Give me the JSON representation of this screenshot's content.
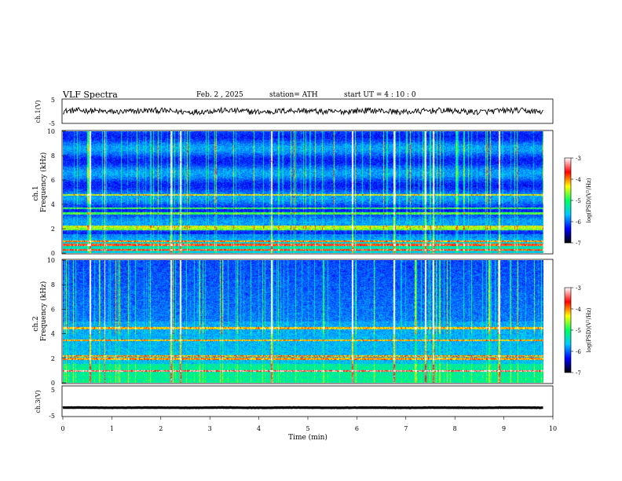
{
  "header": {
    "title": "VLF  Spectra",
    "date": "Feb. 2  , 2025",
    "station": "station= ATH",
    "start": "start  UT  =   4  : 10 : 0"
  },
  "axes": {
    "ch1_label": "ch.1(V)",
    "ch1_ticks": [
      "5",
      "-5"
    ],
    "ch1_ylim": [
      -5,
      5
    ],
    "spec1_label": "ch.1",
    "spec2_label": "ch.2",
    "freq_label": "Frequency  (kHz)",
    "freq_ticks": [
      "0",
      "2",
      "4",
      "6",
      "8",
      "10"
    ],
    "ch3_label": "ch.3(V)",
    "ch3_ticks": [
      "5",
      "-5"
    ],
    "ch3_ylim": [
      -5,
      5
    ],
    "time_label": "Time  (min)",
    "time_ticks": [
      "0",
      "1",
      "2",
      "3",
      "4",
      "5",
      "6",
      "7",
      "8",
      "9",
      "10"
    ]
  },
  "colorbar": {
    "label": "log(PSD)(V²/Hz)",
    "ticks": [
      "-3",
      "-4",
      "-5",
      "-6",
      "-7"
    ],
    "range": [
      -7,
      -3
    ],
    "colors": [
      "#000000",
      "#0000ff",
      "#00c8ff",
      "#00ff60",
      "#ffff00",
      "#ff0000",
      "#ffffff"
    ]
  },
  "chart_data": [
    {
      "type": "line",
      "name": "ch1",
      "xlim": [
        0,
        9.8
      ],
      "ylim": [
        -5,
        5
      ],
      "mean_value": 0,
      "noise_amplitude": 1
    },
    {
      "type": "heatmap",
      "name": "ch1-spectrogram",
      "xlim": [
        0,
        9.8
      ],
      "ylim": [
        0,
        10
      ],
      "bands_khz": [
        0.3,
        0.7,
        1.0,
        2.0,
        2.2,
        3.3,
        3.7,
        4.8
      ],
      "bright_times_min": [
        0.55,
        0.85,
        2.2,
        2.4,
        4.25,
        5.9,
        6.75,
        7.4,
        7.55,
        8.9
      ]
    },
    {
      "type": "heatmap",
      "name": "ch2-spectrogram",
      "xlim": [
        0,
        9.8
      ],
      "ylim": [
        0,
        10
      ],
      "bands_khz": [
        1.0,
        2.0,
        2.2,
        3.5,
        4.5
      ],
      "bright_times_min": [
        0.55,
        0.85,
        2.2,
        2.4,
        4.25,
        5.9,
        6.75,
        7.4,
        7.55,
        8.9
      ]
    },
    {
      "type": "line",
      "name": "ch3",
      "xlim": [
        0,
        9.8
      ],
      "ylim": [
        -5,
        5
      ],
      "mean_value": -2.1,
      "noise_amplitude": 0.1
    }
  ]
}
